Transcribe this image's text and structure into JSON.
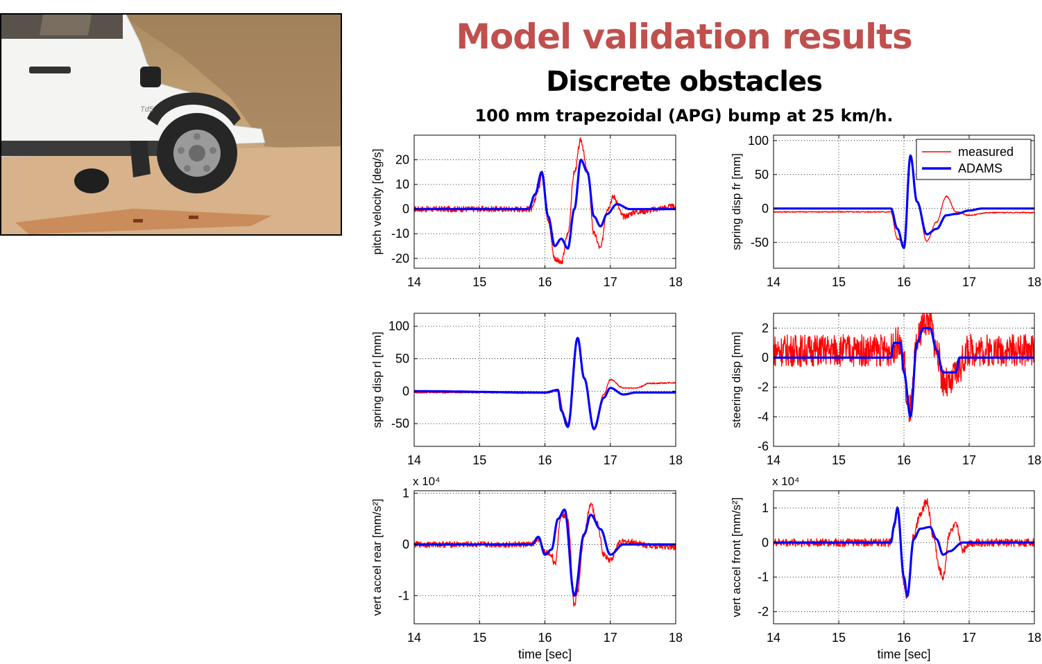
{
  "title": "Model validation results",
  "subtitle": "Discrete obstacles",
  "caption": "100 mm trapezoidal (APG) bump at 25 km/h.",
  "photo": {
    "badge_text": "Td5",
    "description_icon": "vehicle-photo"
  },
  "colors": {
    "title": "#c0504d",
    "measured": "#ff0000",
    "adams": "#0000ff"
  },
  "chart_data": [
    {
      "type": "line",
      "ylabel": "pitch velocity [deg/s]",
      "xlabel": "",
      "xlim": [
        14,
        18
      ],
      "ylim": [
        -24,
        30
      ],
      "xticks": [
        14,
        15,
        16,
        17,
        18
      ],
      "yticks": [
        -20,
        -10,
        0,
        10,
        20
      ],
      "multiplier": "",
      "legend": null,
      "series": [
        {
          "name": "measured",
          "noise": 1.2,
          "x": [
            14,
            15.8,
            15.9,
            15.95,
            16.05,
            16.15,
            16.25,
            16.35,
            16.45,
            16.55,
            16.65,
            16.75,
            16.85,
            16.95,
            17.05,
            17.2,
            17.4,
            18
          ],
          "y": [
            0,
            0,
            8,
            15,
            -5,
            -20,
            -22,
            -10,
            15,
            28,
            15,
            -10,
            -16,
            0,
            5,
            -3,
            -1,
            1
          ]
        },
        {
          "name": "ADAMS",
          "noise": 0,
          "x": [
            14,
            15.75,
            15.85,
            15.95,
            16.05,
            16.15,
            16.25,
            16.35,
            16.45,
            16.55,
            16.65,
            16.75,
            16.85,
            16.95,
            17.1,
            17.3,
            18
          ],
          "y": [
            0,
            0,
            6,
            15,
            -3,
            -15,
            -12,
            -16,
            0,
            20,
            15,
            -3,
            -7,
            -2,
            2,
            0,
            0
          ]
        }
      ]
    },
    {
      "type": "line",
      "ylabel": "spring disp fr [mm]",
      "xlabel": "",
      "xlim": [
        14,
        18
      ],
      "ylim": [
        -88,
        108
      ],
      "xticks": [
        14,
        15,
        16,
        17,
        18
      ],
      "yticks": [
        -50,
        0,
        50,
        100
      ],
      "multiplier": "",
      "legend": [
        "measured",
        "ADAMS"
      ],
      "series": [
        {
          "name": "measured",
          "noise": 0.8,
          "x": [
            14,
            14.5,
            15,
            15.5,
            15.8,
            15.9,
            16.0,
            16.1,
            16.2,
            16.35,
            16.5,
            16.65,
            16.8,
            17.0,
            17.3,
            18
          ],
          "y": [
            -5,
            -5,
            -5,
            -5,
            -5,
            -45,
            -50,
            72,
            10,
            -48,
            -20,
            18,
            -5,
            -10,
            -6,
            -6
          ]
        },
        {
          "name": "ADAMS",
          "noise": 0,
          "x": [
            14,
            15.8,
            15.9,
            16.0,
            16.1,
            16.2,
            16.35,
            16.5,
            16.65,
            16.8,
            17.0,
            17.2,
            18
          ],
          "y": [
            0,
            0,
            -30,
            -58,
            78,
            10,
            -38,
            -30,
            -10,
            -8,
            -3,
            0,
            0
          ]
        }
      ]
    },
    {
      "type": "line",
      "ylabel": "spring disp rl [mm]",
      "xlabel": "",
      "xlim": [
        14,
        18
      ],
      "ylim": [
        -85,
        120
      ],
      "xticks": [
        14,
        15,
        16,
        17,
        18
      ],
      "yticks": [
        -50,
        0,
        50,
        100
      ],
      "multiplier": "",
      "legend": null,
      "series": [
        {
          "name": "measured",
          "noise": 1.0,
          "x": [
            14,
            15,
            16.0,
            16.2,
            16.3,
            16.35,
            16.5,
            16.6,
            16.75,
            16.9,
            17.0,
            17.2,
            17.4,
            17.6,
            18
          ],
          "y": [
            -2,
            -2,
            -3,
            0,
            -40,
            -50,
            78,
            20,
            -60,
            -5,
            18,
            5,
            5,
            12,
            13
          ]
        },
        {
          "name": "ADAMS",
          "noise": 0,
          "x": [
            14,
            16.0,
            16.2,
            16.25,
            16.35,
            16.5,
            16.6,
            16.75,
            16.9,
            17.0,
            17.2,
            17.4,
            18
          ],
          "y": [
            0,
            -2,
            2,
            -30,
            -55,
            82,
            20,
            -58,
            -10,
            5,
            -5,
            -2,
            -2
          ]
        }
      ]
    },
    {
      "type": "line",
      "ylabel": "steering disp [mm]",
      "xlabel": "",
      "xlim": [
        14,
        18
      ],
      "ylim": [
        -6,
        3
      ],
      "xticks": [
        14,
        15,
        16,
        17,
        18
      ],
      "yticks": [
        -6,
        -4,
        -2,
        0,
        2
      ],
      "multiplier": "",
      "legend": null,
      "series": [
        {
          "name": "measured",
          "noise": 1.1,
          "x": [
            14,
            15.8,
            15.9,
            16.0,
            16.05,
            16.1,
            16.2,
            16.3,
            16.4,
            16.5,
            16.6,
            16.7,
            16.8,
            17.0,
            18
          ],
          "y": [
            0.5,
            0.5,
            1,
            0,
            -3.5,
            -3.5,
            1,
            2.5,
            2.5,
            0.5,
            -1.5,
            -2,
            -1,
            0.5,
            0.5
          ]
        },
        {
          "name": "ADAMS",
          "noise": 0,
          "x": [
            14,
            15.8,
            15.85,
            15.95,
            16.0,
            16.1,
            16.2,
            16.3,
            16.4,
            16.5,
            16.6,
            16.8,
            16.85,
            18
          ],
          "y": [
            0,
            0,
            1,
            1,
            -1,
            -4,
            1,
            2,
            2,
            0.5,
            -1,
            -1,
            0,
            0
          ]
        }
      ]
    },
    {
      "type": "line",
      "ylabel": "vert accel rear [mm/s²]",
      "xlabel": "time [sec]",
      "xlim": [
        14,
        18
      ],
      "ylim": [
        -1.55,
        1.05
      ],
      "xticks": [
        14,
        15,
        16,
        17,
        18
      ],
      "yticks": [
        -1,
        0,
        1
      ],
      "multiplier": "x 10⁴",
      "legend": null,
      "series": [
        {
          "name": "measured",
          "noise": 0.06,
          "x": [
            14,
            15.8,
            15.9,
            16.0,
            16.1,
            16.15,
            16.25,
            16.35,
            16.45,
            16.5,
            16.6,
            16.7,
            16.8,
            16.9,
            17.0,
            17.15,
            17.3,
            17.6,
            18
          ],
          "y": [
            0,
            0,
            0.1,
            -0.15,
            -0.2,
            -0.4,
            0.6,
            0.5,
            -1.2,
            -0.9,
            0.2,
            0.8,
            0.4,
            -0.2,
            -0.3,
            0.05,
            0.05,
            -0.02,
            -0.05
          ]
        },
        {
          "name": "ADAMS",
          "noise": 0,
          "x": [
            14,
            15.8,
            15.9,
            16.0,
            16.1,
            16.2,
            16.3,
            16.45,
            16.6,
            16.7,
            16.85,
            17.0,
            17.2,
            18
          ],
          "y": [
            0,
            0,
            0.15,
            -0.2,
            -0.1,
            0.5,
            0.68,
            -1.0,
            0.2,
            0.58,
            0.3,
            -0.2,
            0,
            0
          ]
        }
      ]
    },
    {
      "type": "line",
      "ylabel": "vert accel front [mm/s²]",
      "xlabel": "time [sec]",
      "xlim": [
        14,
        18
      ],
      "ylim": [
        -2.35,
        1.5
      ],
      "xticks": [
        14,
        15,
        16,
        17,
        18
      ],
      "yticks": [
        -2,
        -1,
        0,
        1
      ],
      "multiplier": "x 10⁴",
      "legend": null,
      "series": [
        {
          "name": "measured",
          "noise": 0.12,
          "x": [
            14,
            15.8,
            15.85,
            15.9,
            16.0,
            16.05,
            16.15,
            16.25,
            16.35,
            16.45,
            16.55,
            16.6,
            16.7,
            16.8,
            16.9,
            17.0,
            17.2,
            18
          ],
          "y": [
            0,
            0,
            0.5,
            1.0,
            -1.2,
            -1.6,
            0.2,
            0.8,
            1.2,
            0.2,
            -0.8,
            -1.0,
            0.3,
            0.5,
            -0.2,
            0,
            0,
            0
          ]
        },
        {
          "name": "ADAMS",
          "noise": 0,
          "x": [
            14,
            15.8,
            15.85,
            15.9,
            16.0,
            16.05,
            16.15,
            16.25,
            16.4,
            16.5,
            16.6,
            16.7,
            16.9,
            18
          ],
          "y": [
            0,
            0,
            0.5,
            1.0,
            -1.0,
            -1.55,
            0.1,
            0.4,
            0.45,
            0.1,
            -0.35,
            -0.25,
            0,
            0
          ]
        }
      ]
    }
  ]
}
